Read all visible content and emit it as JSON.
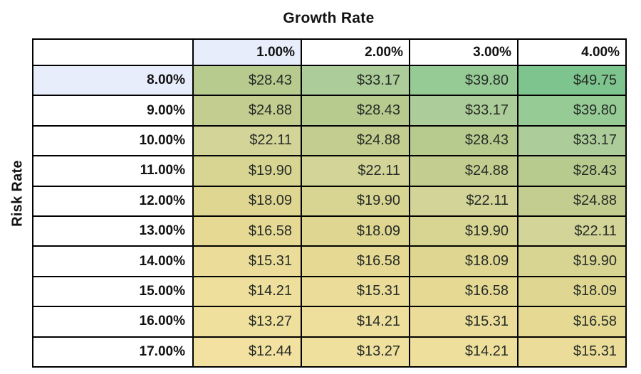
{
  "chart_data": {
    "type": "heatmap",
    "title": "Growth Rate",
    "col_axis_label": "Growth Rate",
    "row_axis_label": "Risk Rate",
    "col_headers": [
      "1.00%",
      "2.00%",
      "3.00%",
      "4.00%"
    ],
    "row_headers": [
      "8.00%",
      "9.00%",
      "10.00%",
      "11.00%",
      "12.00%",
      "13.00%",
      "14.00%",
      "15.00%",
      "16.00%",
      "17.00%"
    ],
    "values": [
      [
        28.43,
        33.17,
        39.8,
        49.75
      ],
      [
        24.88,
        28.43,
        33.17,
        39.8
      ],
      [
        22.11,
        24.88,
        28.43,
        33.17
      ],
      [
        19.9,
        22.11,
        24.88,
        28.43
      ],
      [
        18.09,
        19.9,
        22.11,
        24.88
      ],
      [
        16.58,
        18.09,
        19.9,
        22.11
      ],
      [
        15.31,
        16.58,
        18.09,
        19.9
      ],
      [
        14.21,
        15.31,
        16.58,
        18.09
      ],
      [
        13.27,
        14.21,
        15.31,
        16.58
      ],
      [
        12.44,
        13.27,
        14.21,
        15.31
      ]
    ],
    "display_rows": [
      [
        "$28.43",
        "$33.17",
        "$39.80",
        "$49.75"
      ],
      [
        "$24.88",
        "$28.43",
        "$33.17",
        "$39.80"
      ],
      [
        "$22.11",
        "$24.88",
        "$28.43",
        "$33.17"
      ],
      [
        "$19.90",
        "$22.11",
        "$24.88",
        "$28.43"
      ],
      [
        "$18.09",
        "$19.90",
        "$22.11",
        "$24.88"
      ],
      [
        "$16.58",
        "$18.09",
        "$19.90",
        "$22.11"
      ],
      [
        "$15.31",
        "$16.58",
        "$18.09",
        "$19.90"
      ],
      [
        "$14.21",
        "$15.31",
        "$16.58",
        "$18.09"
      ],
      [
        "$13.27",
        "$14.21",
        "$15.31",
        "$16.58"
      ],
      [
        "$12.44",
        "$13.27",
        "$14.21",
        "$15.31"
      ]
    ],
    "highlighted_col": "1.00%",
    "highlighted_row": "8.00%",
    "color_scale": {
      "min_value": 12.44,
      "min_color": "#f2e1a0",
      "max_value": 49.75,
      "max_color": "#7ec48e"
    },
    "value_colors": {
      "$49.75": "#7ec48e",
      "$39.80": "#96cb96",
      "$33.17": "#accd99",
      "$28.43": "#b7cb8e",
      "$24.88": "#c3cd8f",
      "$22.11": "#d2d498",
      "$19.90": "#d8d593",
      "$18.09": "#ded691",
      "$16.58": "#e5d994",
      "$15.31": "#ebdd99",
      "$14.21": "#eedf9c",
      "$13.27": "#f0e09e",
      "$12.44": "#f2e1a0"
    },
    "layout": {
      "highlight_fill": "#e8edfb",
      "header_fill": "#ffffff",
      "border_color": "#000000",
      "grid": true,
      "legend": false
    }
  }
}
